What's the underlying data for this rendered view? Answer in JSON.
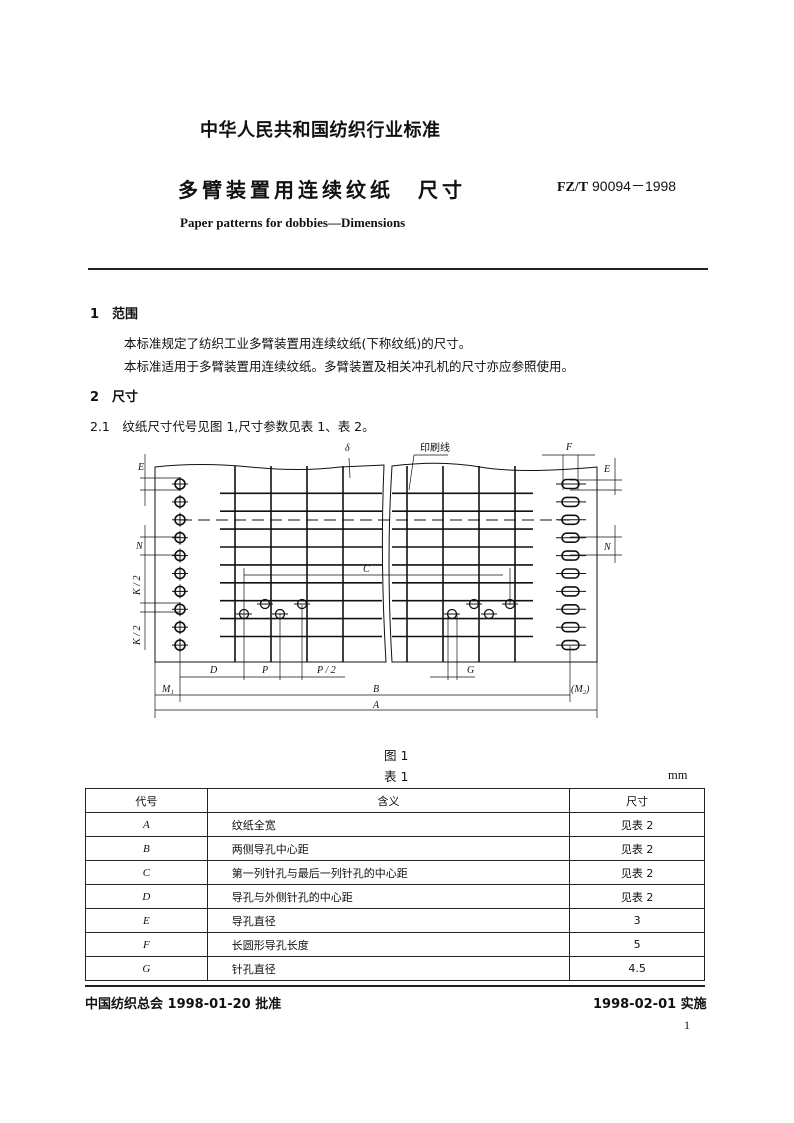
{
  "header": {
    "org": "中华人民共和国纺织行业标准",
    "title": "多臂装置用连续纹纸　尺寸",
    "code_prefix": "FZ/T",
    "code_number": "90094－1998",
    "title_en": "Paper patterns for dobbies—Dimensions"
  },
  "sections": [
    {
      "heading": "1　范围",
      "paragraphs": [
        "本标准规定了纺织工业多臂装置用连续纹纸(下称纹纸)的尺寸。",
        "本标准适用于多臂装置用连续纹纸。多臂装置及相关冲孔机的尺寸亦应参照使用。"
      ]
    },
    {
      "heading": "2　尺寸",
      "paragraphs": [
        "2.1　纹纸尺寸代号见图 1,尺寸参数见表 1、表 2。"
      ]
    }
  ],
  "figure": {
    "caption": "图 1",
    "labels": {
      "delta": "δ",
      "print_line": "印刷线",
      "F": "F",
      "E": "E",
      "N": "N",
      "K2": "K / 2",
      "C": "C",
      "D": "D",
      "P": "P",
      "P2": "P / 2",
      "G": "G",
      "M1": "M₁",
      "B": "B",
      "M2": "(M₂)",
      "A": "A"
    }
  },
  "table": {
    "title": "表 1",
    "unit": "mm",
    "headers": [
      "代号",
      "含义",
      "尺寸"
    ],
    "rows": [
      [
        "A",
        "纹纸全宽",
        "见表 2"
      ],
      [
        "B",
        "两侧导孔中心距",
        "见表 2"
      ],
      [
        "C",
        "第一列针孔与最后一列针孔的中心距",
        "见表 2"
      ],
      [
        "D",
        "导孔与外侧针孔的中心距",
        "见表 2"
      ],
      [
        "E",
        "导孔直径",
        "3"
      ],
      [
        "F",
        "长圆形导孔长度",
        "5"
      ],
      [
        "G",
        "针孔直径",
        "4.5"
      ]
    ]
  },
  "footer": {
    "approval": "中国纺织总会 1998-01-20 批准",
    "effective": "1998-02-01 实施",
    "page_number": "1"
  }
}
